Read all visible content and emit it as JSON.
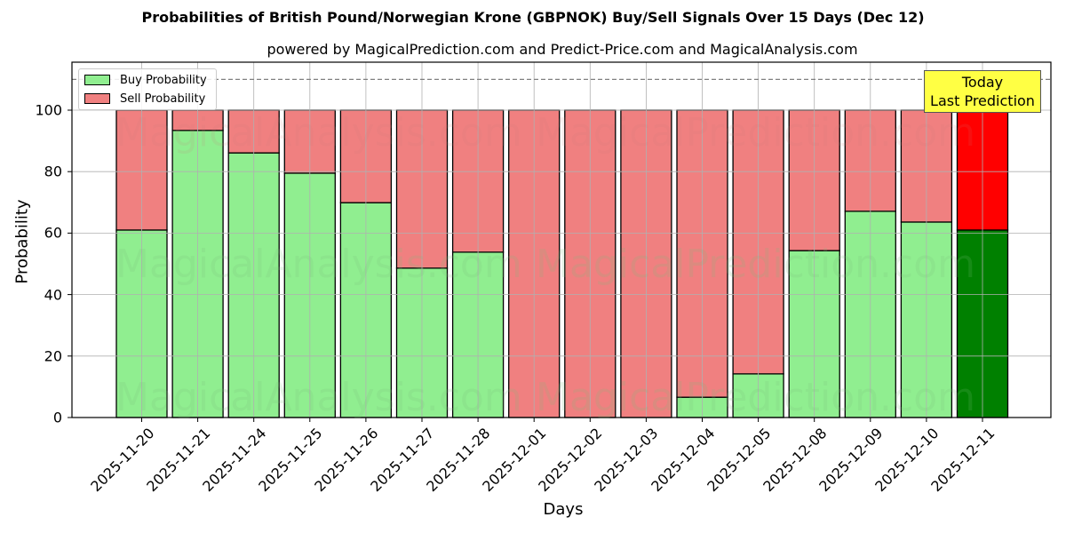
{
  "title": "Probabilities of British Pound/Norwegian Krone (GBPNOK) Buy/Sell Signals Over 15 Days (Dec 12)",
  "subtitle": "powered by MagicalPrediction.com and Predict-Price.com and MagicalAnalysis.com",
  "legend": {
    "buy": "Buy Probability",
    "sell": "Sell Probability"
  },
  "annotation": {
    "line1": "Today",
    "line2": "Last Prediction"
  },
  "watermarks": [
    "MagicalAnalysis.com",
    "MagicalPrediction.com"
  ],
  "colors": {
    "buy": "#90ee90",
    "sell": "#f08080",
    "today_buy": "#008000",
    "today_sell": "#ff0000",
    "annotation_bg": "#ffff44"
  },
  "chart_data": {
    "type": "bar",
    "stacked": true,
    "title": "Probabilities of British Pound/Norwegian Krone (GBPNOK) Buy/Sell Signals Over 15 Days (Dec 12)",
    "subtitle": "powered by MagicalPrediction.com and Predict-Price.com and MagicalAnalysis.com",
    "xlabel": "Days",
    "ylabel": "Probability",
    "ylim": [
      0,
      115
    ],
    "yticks": [
      0,
      20,
      40,
      60,
      80,
      100
    ],
    "grid": true,
    "legend_position": "upper left",
    "reference_line": {
      "y": 110,
      "style": "dashed"
    },
    "categories": [
      "2025-11-20",
      "2025-11-21",
      "2025-11-24",
      "2025-11-25",
      "2025-11-26",
      "2025-11-27",
      "2025-11-28",
      "2025-12-01",
      "2025-12-02",
      "2025-12-03",
      "2025-12-04",
      "2025-12-05",
      "2025-12-08",
      "2025-12-09",
      "2025-12-10",
      "2025-12-11"
    ],
    "series": [
      {
        "name": "Buy Probability",
        "values": [
          61.0,
          93.4,
          86.1,
          79.5,
          69.9,
          48.6,
          53.8,
          0,
          0,
          0,
          6.6,
          14.2,
          54.3,
          67.1,
          63.6,
          61.0
        ]
      },
      {
        "name": "Sell Probability",
        "values": [
          39.0,
          6.6,
          13.9,
          20.5,
          30.1,
          51.4,
          46.2,
          100,
          100,
          100,
          93.4,
          85.8,
          45.7,
          32.9,
          36.4,
          39.0
        ]
      }
    ],
    "highlight": {
      "category": "2025-12-11",
      "label": "Today\nLast Prediction"
    }
  }
}
